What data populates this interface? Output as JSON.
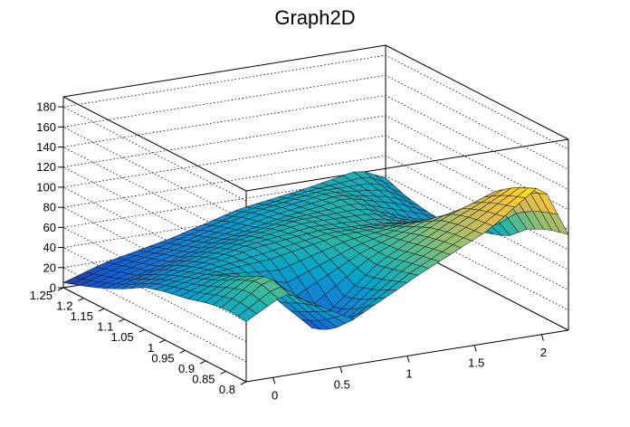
{
  "chart_data": {
    "type": "surface",
    "title": "Graph2D",
    "xlabel": "",
    "ylabel": "",
    "zlabel": "",
    "xlim": [
      -0.2,
      2.2
    ],
    "ylim": [
      0.8,
      1.25
    ],
    "zlim": [
      0,
      190
    ],
    "x_ticks": [
      0,
      0.5,
      1,
      1.5,
      2
    ],
    "x_tick_labels": [
      "0",
      "0.5",
      "1",
      "1.5",
      "2"
    ],
    "y_ticks": [
      0.8,
      0.85,
      0.9,
      0.95,
      1,
      1.05,
      1.1,
      1.15,
      1.2,
      1.25
    ],
    "y_tick_labels": [
      "0.8",
      "0.85",
      "0.9",
      "0.95",
      "1",
      "1.05",
      "1.1",
      "1.15",
      "1.2",
      "1.25"
    ],
    "z_ticks": [
      0,
      20,
      40,
      60,
      80,
      100,
      120,
      140,
      160,
      180
    ],
    "z_tick_labels": [
      "0",
      "20",
      "40",
      "60",
      "80",
      "100",
      "120",
      "140",
      "160",
      "180"
    ],
    "grid": true,
    "colormap": [
      "#352a87",
      "#0f5cdd",
      "#1481d6",
      "#06a4ca",
      "#2eb7a4",
      "#87bf77",
      "#d1bb59",
      "#fec832",
      "#f9fb0e"
    ],
    "surface_x": [
      -0.2,
      0.1,
      0.6,
      1.1,
      1.6,
      2.0,
      2.2
    ],
    "surface_y": [
      0.8,
      0.85,
      0.9,
      0.95,
      1.0,
      1.05,
      1.1,
      1.15,
      1.2,
      1.25
    ],
    "surface_z": [
      [
        60,
        82,
        45,
        80,
        112,
        150,
        95
      ],
      [
        62,
        90,
        25,
        75,
        110,
        140,
        90
      ],
      [
        58,
        80,
        14,
        70,
        105,
        125,
        80
      ],
      [
        52,
        68,
        42,
        72,
        92,
        95,
        62
      ],
      [
        48,
        58,
        62,
        75,
        78,
        70,
        55
      ],
      [
        42,
        50,
        65,
        72,
        68,
        55,
        48
      ],
      [
        30,
        42,
        58,
        70,
        70,
        50,
        44
      ],
      [
        20,
        30,
        48,
        62,
        72,
        58,
        46
      ],
      [
        12,
        24,
        40,
        58,
        68,
        65,
        50
      ],
      [
        5,
        18,
        32,
        50,
        60,
        70,
        58
      ]
    ]
  }
}
